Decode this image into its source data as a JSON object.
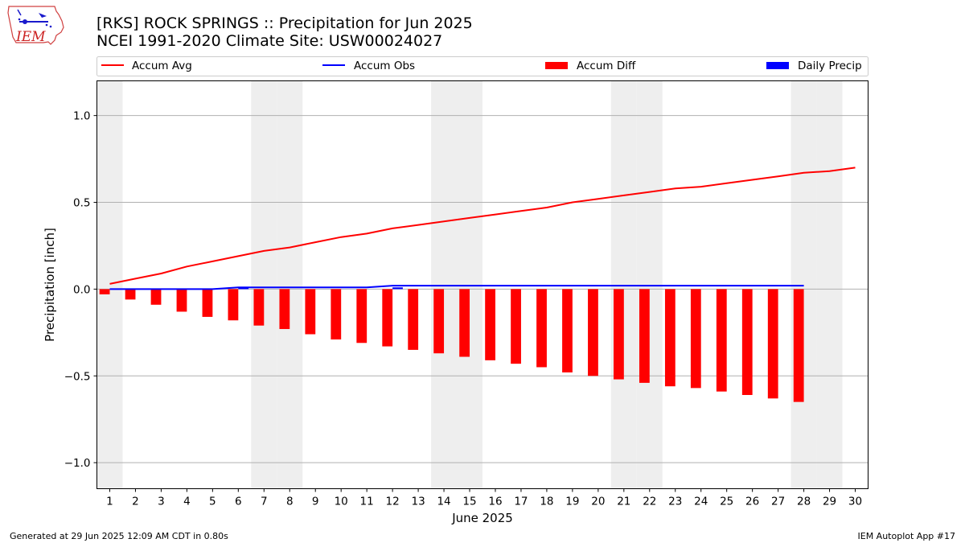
{
  "header": {
    "logo_text": "IEM",
    "title_line1": "[RKS] ROCK SPRINGS :: Precipitation for Jun 2025",
    "title_line2": "NCEI 1991-2020 Climate Site: USW00024027"
  },
  "footer": {
    "generated": "Generated at 29 Jun 2025 12:09 AM CDT in 0.80s",
    "app": "IEM Autoplot App #17"
  },
  "colors": {
    "avg": "#ff0000",
    "obs": "#0000ff",
    "diff": "#ff0000",
    "daily": "#0000ff",
    "weekend_band": "#eeeeee",
    "grid": "#b0b0b0"
  },
  "chart_data": {
    "type": "bar",
    "xlabel": "June 2025",
    "ylabel": "Precipitation [inch]",
    "xlim": [
      0.5,
      30.5
    ],
    "ylim": [
      -1.15,
      1.2
    ],
    "y_ticks": [
      -1.0,
      -0.5,
      0.0,
      0.5,
      1.0
    ],
    "y_tick_labels": [
      "−1.0",
      "−0.5",
      "0.0",
      "0.5",
      "1.0"
    ],
    "x_ticks": [
      1,
      2,
      3,
      4,
      5,
      6,
      7,
      8,
      9,
      10,
      11,
      12,
      13,
      14,
      15,
      16,
      17,
      18,
      19,
      20,
      21,
      22,
      23,
      24,
      25,
      26,
      27,
      28,
      29,
      30
    ],
    "grid": "horizontal",
    "legend_position": "top, above plot",
    "weekend_days": [
      1,
      7,
      8,
      14,
      15,
      21,
      22,
      28,
      29
    ],
    "legend": [
      "Accum Avg",
      "Accum Obs",
      "Accum Diff",
      "Daily Precip"
    ],
    "accum_avg": {
      "name": "Accum Avg",
      "x": [
        1,
        2,
        3,
        4,
        5,
        6,
        7,
        8,
        9,
        10,
        11,
        12,
        13,
        14,
        15,
        16,
        17,
        18,
        19,
        20,
        21,
        22,
        23,
        24,
        25,
        26,
        27,
        28,
        29,
        30
      ],
      "values": [
        0.03,
        0.06,
        0.09,
        0.13,
        0.16,
        0.19,
        0.22,
        0.24,
        0.27,
        0.3,
        0.32,
        0.35,
        0.37,
        0.39,
        0.41,
        0.43,
        0.45,
        0.47,
        0.5,
        0.52,
        0.54,
        0.56,
        0.58,
        0.59,
        0.61,
        0.63,
        0.65,
        0.67,
        0.68,
        0.7
      ]
    },
    "accum_obs": {
      "name": "Accum Obs",
      "x": [
        1,
        2,
        3,
        4,
        5,
        6,
        7,
        8,
        9,
        10,
        11,
        12,
        13,
        14,
        15,
        16,
        17,
        18,
        19,
        20,
        21,
        22,
        23,
        24,
        25,
        26,
        27,
        28
      ],
      "values": [
        0.0,
        0.0,
        0.0,
        0.0,
        0.0,
        0.01,
        0.01,
        0.01,
        0.01,
        0.01,
        0.01,
        0.02,
        0.02,
        0.02,
        0.02,
        0.02,
        0.02,
        0.02,
        0.02,
        0.02,
        0.02,
        0.02,
        0.02,
        0.02,
        0.02,
        0.02,
        0.02,
        0.02
      ]
    },
    "accum_diff": {
      "name": "Accum Diff",
      "x": [
        1,
        2,
        3,
        4,
        5,
        6,
        7,
        8,
        9,
        10,
        11,
        12,
        13,
        14,
        15,
        16,
        17,
        18,
        19,
        20,
        21,
        22,
        23,
        24,
        25,
        26,
        27,
        28
      ],
      "values": [
        -0.03,
        -0.06,
        -0.09,
        -0.13,
        -0.16,
        -0.18,
        -0.21,
        -0.23,
        -0.26,
        -0.29,
        -0.31,
        -0.33,
        -0.35,
        -0.37,
        -0.39,
        -0.41,
        -0.43,
        -0.45,
        -0.48,
        -0.5,
        -0.52,
        -0.54,
        -0.56,
        -0.57,
        -0.59,
        -0.61,
        -0.63,
        -0.65
      ]
    },
    "daily_precip": {
      "name": "Daily Precip",
      "x": [
        1,
        2,
        3,
        4,
        5,
        6,
        7,
        8,
        9,
        10,
        11,
        12,
        13,
        14,
        15,
        16,
        17,
        18,
        19,
        20,
        21,
        22,
        23,
        24,
        25,
        26,
        27,
        28
      ],
      "values": [
        0,
        0,
        0,
        0,
        0,
        0.01,
        0,
        0,
        0,
        0,
        0,
        0.01,
        0,
        0,
        0,
        0,
        0,
        0,
        0,
        0,
        0,
        0,
        0,
        0,
        0,
        0,
        0,
        0
      ]
    }
  }
}
